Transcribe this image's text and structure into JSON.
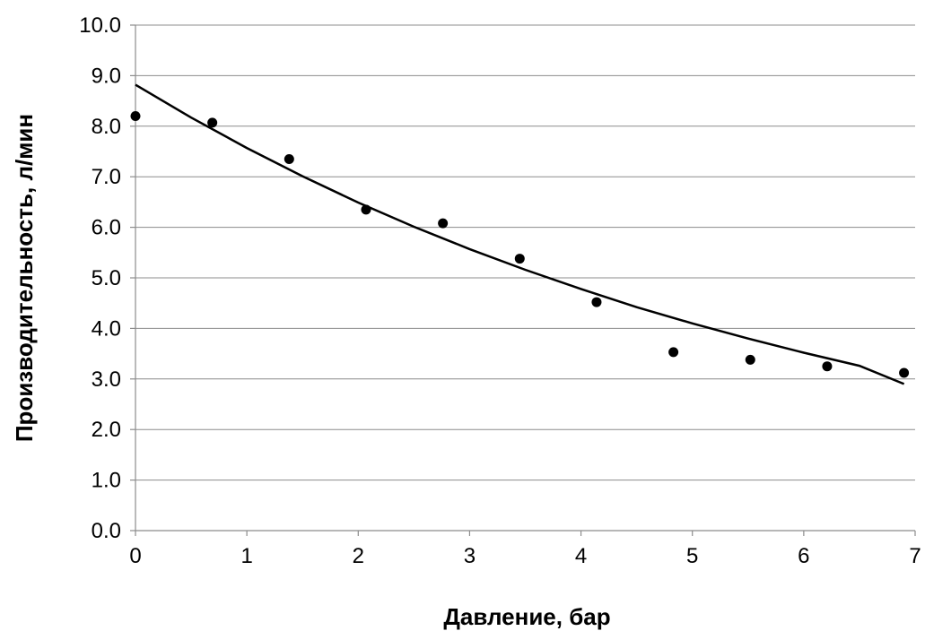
{
  "chart_data": {
    "type": "scatter",
    "xlabel": "Давление, бар",
    "ylabel": "Производительность, л/мин",
    "xlim": [
      0,
      7
    ],
    "ylim": [
      0,
      10
    ],
    "x_ticks": [
      "0",
      "1",
      "2",
      "3",
      "4",
      "5",
      "6",
      "7"
    ],
    "y_ticks": [
      "0.0",
      "1.0",
      "2.0",
      "3.0",
      "4.0",
      "5.0",
      "6.0",
      "7.0",
      "8.0",
      "9.0",
      "10.0"
    ],
    "grid": true,
    "series": [
      {
        "points": [
          {
            "x": 0.0,
            "y": 8.2
          },
          {
            "x": 0.69,
            "y": 8.07
          },
          {
            "x": 1.38,
            "y": 7.35
          },
          {
            "x": 2.07,
            "y": 6.35
          },
          {
            "x": 2.76,
            "y": 6.08
          },
          {
            "x": 3.45,
            "y": 5.38
          },
          {
            "x": 4.14,
            "y": 4.52
          },
          {
            "x": 4.83,
            "y": 3.53
          },
          {
            "x": 5.52,
            "y": 3.38
          },
          {
            "x": 6.21,
            "y": 3.25
          },
          {
            "x": 6.9,
            "y": 3.12
          }
        ]
      }
    ],
    "trendline": {
      "type": "exponential",
      "x": [
        0,
        0.5,
        1,
        1.5,
        2,
        2.5,
        3,
        3.5,
        4,
        4.5,
        5,
        5.5,
        6,
        6.5,
        6.9
      ],
      "y": [
        8.82,
        8.17,
        7.57,
        7.01,
        6.49,
        6.01,
        5.57,
        5.16,
        4.78,
        4.42,
        4.1,
        3.8,
        3.52,
        3.26,
        2.9
      ]
    },
    "colors": {
      "points": "#000000",
      "trendline": "#000000",
      "grid": "#8c8c8c"
    }
  }
}
